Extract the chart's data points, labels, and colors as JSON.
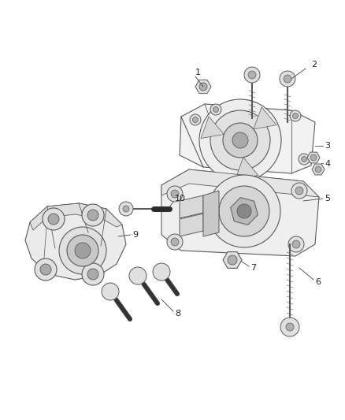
{
  "background_color": "#ffffff",
  "line_color": "#5a5a5a",
  "dark_color": "#2a2a2a",
  "light_fill": "#f5f5f5",
  "mid_fill": "#e0e0e0",
  "dark_fill": "#b0b0b0",
  "very_dark_fill": "#606060",
  "label_color": "#222222",
  "label_fontsize": 8,
  "figsize": [
    4.38,
    5.33
  ],
  "dpi": 100
}
